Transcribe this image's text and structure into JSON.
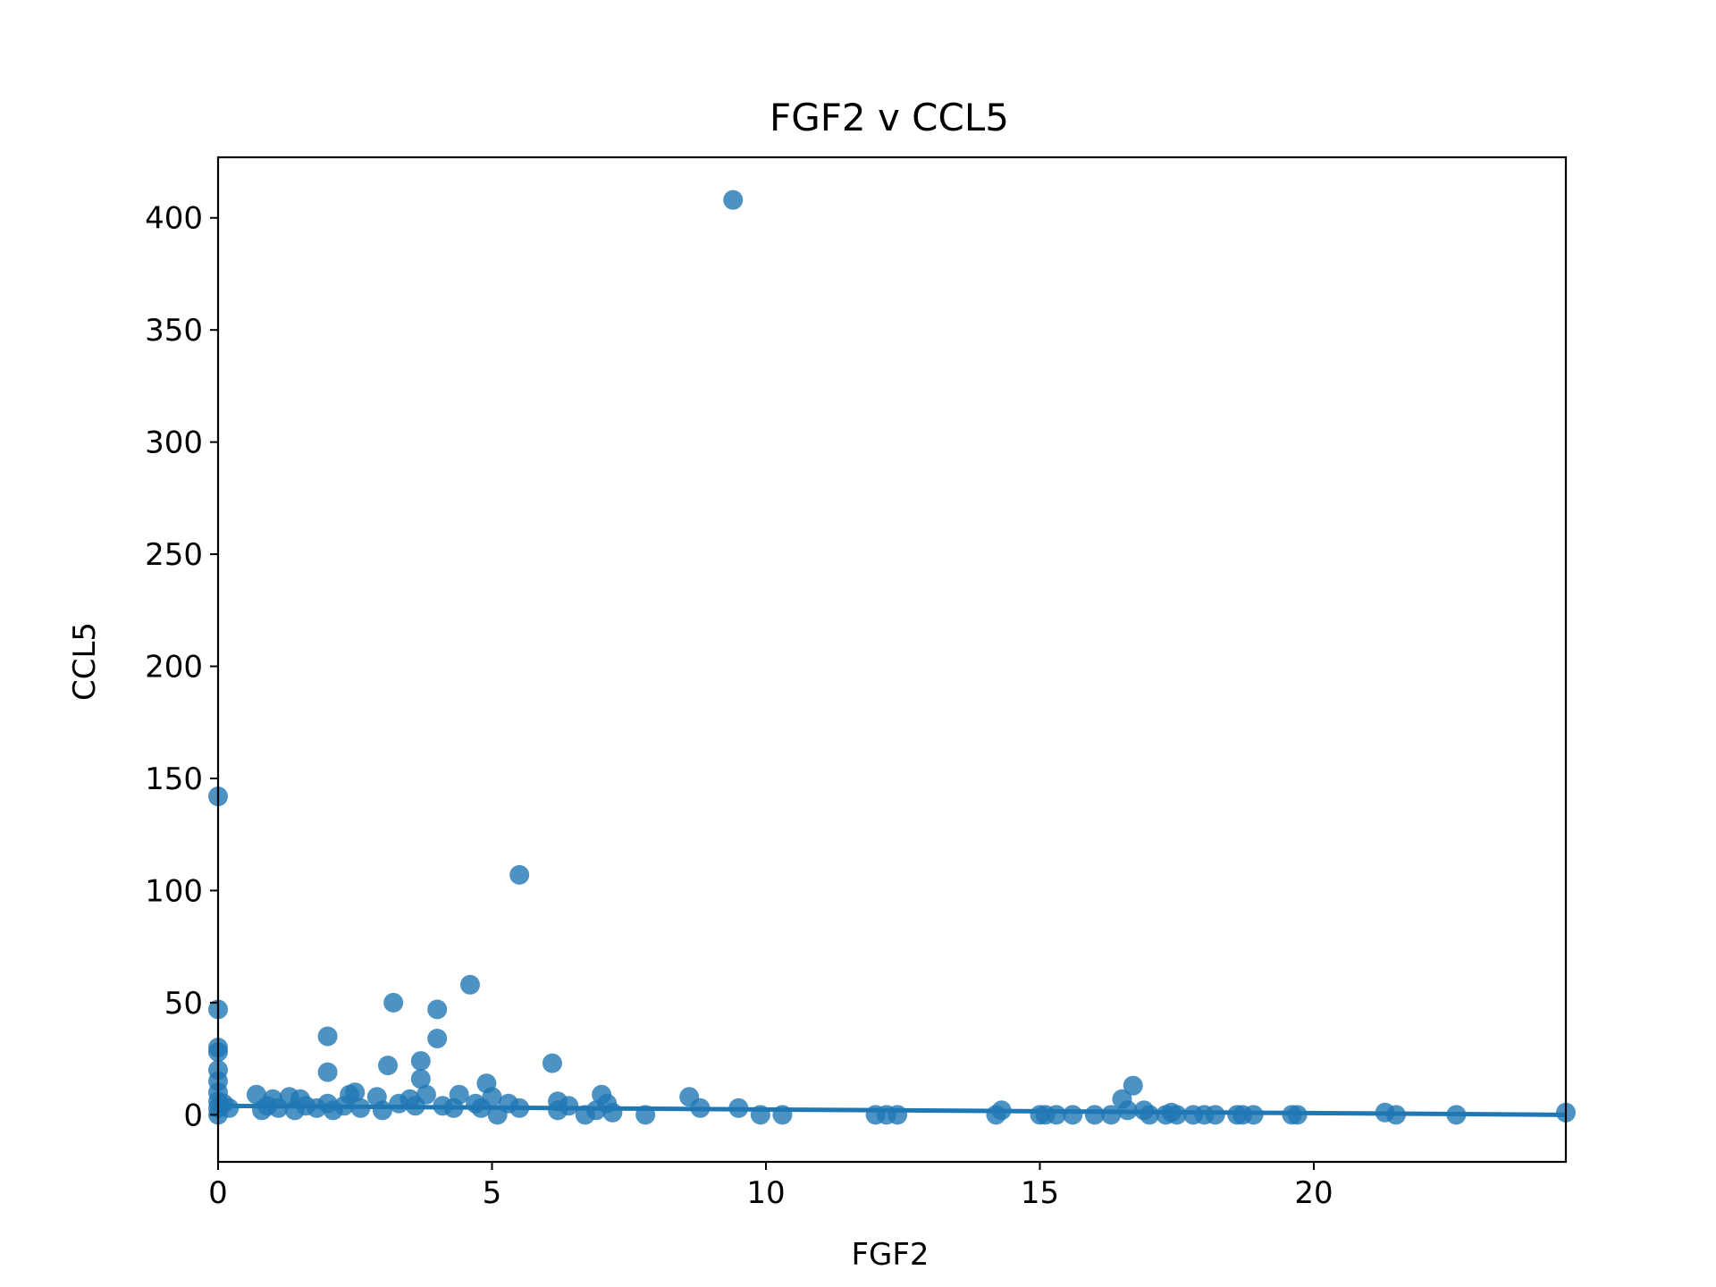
{
  "chart_data": {
    "type": "scatter",
    "title": "FGF2 v CCL5",
    "xlabel": "FGF2",
    "ylabel": "CCL5",
    "xlim": [
      0,
      24.6
    ],
    "ylim": [
      -21,
      427
    ],
    "xticks": [
      0,
      5,
      10,
      15,
      20
    ],
    "yticks": [
      0,
      50,
      100,
      150,
      200,
      250,
      300,
      350,
      400
    ],
    "grid": false,
    "legend": "none",
    "color": "#1f77b4",
    "points": [
      {
        "x": 0,
        "y": 142
      },
      {
        "x": 0,
        "y": 47
      },
      {
        "x": 0,
        "y": 30
      },
      {
        "x": 0,
        "y": 28
      },
      {
        "x": 0,
        "y": 20
      },
      {
        "x": 0,
        "y": 15
      },
      {
        "x": 0,
        "y": 10
      },
      {
        "x": 0,
        "y": 6
      },
      {
        "x": 0,
        "y": 3
      },
      {
        "x": 0,
        "y": 0
      },
      {
        "x": 0.1,
        "y": 5
      },
      {
        "x": 0.2,
        "y": 3
      },
      {
        "x": 0.7,
        "y": 9
      },
      {
        "x": 0.8,
        "y": 2
      },
      {
        "x": 0.9,
        "y": 4
      },
      {
        "x": 1.0,
        "y": 7
      },
      {
        "x": 1.1,
        "y": 3
      },
      {
        "x": 1.3,
        "y": 8
      },
      {
        "x": 1.4,
        "y": 2
      },
      {
        "x": 1.5,
        "y": 7
      },
      {
        "x": 1.6,
        "y": 4
      },
      {
        "x": 1.8,
        "y": 3
      },
      {
        "x": 2.0,
        "y": 19
      },
      {
        "x": 2.0,
        "y": 35
      },
      {
        "x": 2.0,
        "y": 5
      },
      {
        "x": 2.1,
        "y": 2
      },
      {
        "x": 2.3,
        "y": 4
      },
      {
        "x": 2.4,
        "y": 9
      },
      {
        "x": 2.5,
        "y": 10
      },
      {
        "x": 2.6,
        "y": 3
      },
      {
        "x": 2.9,
        "y": 8
      },
      {
        "x": 3.0,
        "y": 2
      },
      {
        "x": 3.1,
        "y": 22
      },
      {
        "x": 3.2,
        "y": 50
      },
      {
        "x": 3.3,
        "y": 5
      },
      {
        "x": 3.5,
        "y": 7
      },
      {
        "x": 3.6,
        "y": 4
      },
      {
        "x": 3.7,
        "y": 24
      },
      {
        "x": 3.7,
        "y": 16
      },
      {
        "x": 3.8,
        "y": 9
      },
      {
        "x": 4.0,
        "y": 47
      },
      {
        "x": 4.0,
        "y": 34
      },
      {
        "x": 4.1,
        "y": 4
      },
      {
        "x": 4.3,
        "y": 3
      },
      {
        "x": 4.4,
        "y": 9
      },
      {
        "x": 4.6,
        "y": 58
      },
      {
        "x": 4.7,
        "y": 5
      },
      {
        "x": 4.8,
        "y": 3
      },
      {
        "x": 4.9,
        "y": 14
      },
      {
        "x": 5.0,
        "y": 8
      },
      {
        "x": 5.1,
        "y": 0
      },
      {
        "x": 5.3,
        "y": 5
      },
      {
        "x": 5.5,
        "y": 107
      },
      {
        "x": 5.5,
        "y": 3
      },
      {
        "x": 6.1,
        "y": 23
      },
      {
        "x": 6.2,
        "y": 6
      },
      {
        "x": 6.2,
        "y": 2
      },
      {
        "x": 6.4,
        "y": 4
      },
      {
        "x": 6.7,
        "y": 0
      },
      {
        "x": 6.9,
        "y": 2
      },
      {
        "x": 7.0,
        "y": 9
      },
      {
        "x": 7.1,
        "y": 5
      },
      {
        "x": 7.2,
        "y": 1
      },
      {
        "x": 7.8,
        "y": 0
      },
      {
        "x": 8.6,
        "y": 8
      },
      {
        "x": 8.8,
        "y": 3
      },
      {
        "x": 9.4,
        "y": 408
      },
      {
        "x": 9.5,
        "y": 3
      },
      {
        "x": 9.9,
        "y": 0
      },
      {
        "x": 10.3,
        "y": 0
      },
      {
        "x": 12.0,
        "y": 0
      },
      {
        "x": 12.2,
        "y": 0
      },
      {
        "x": 12.4,
        "y": 0
      },
      {
        "x": 14.2,
        "y": 0
      },
      {
        "x": 14.3,
        "y": 2
      },
      {
        "x": 15.0,
        "y": 0
      },
      {
        "x": 15.1,
        "y": 0
      },
      {
        "x": 15.3,
        "y": 0
      },
      {
        "x": 15.6,
        "y": 0
      },
      {
        "x": 16.0,
        "y": 0
      },
      {
        "x": 16.3,
        "y": 0
      },
      {
        "x": 16.5,
        "y": 7
      },
      {
        "x": 16.6,
        "y": 2
      },
      {
        "x": 16.7,
        "y": 13
      },
      {
        "x": 16.9,
        "y": 2
      },
      {
        "x": 17.0,
        "y": 0
      },
      {
        "x": 17.3,
        "y": 0
      },
      {
        "x": 17.4,
        "y": 1
      },
      {
        "x": 17.5,
        "y": 0
      },
      {
        "x": 17.8,
        "y": 0
      },
      {
        "x": 18.0,
        "y": 0
      },
      {
        "x": 18.2,
        "y": 0
      },
      {
        "x": 18.6,
        "y": 0
      },
      {
        "x": 18.7,
        "y": 0
      },
      {
        "x": 18.9,
        "y": 0
      },
      {
        "x": 19.6,
        "y": 0
      },
      {
        "x": 19.7,
        "y": 0
      },
      {
        "x": 21.3,
        "y": 1
      },
      {
        "x": 21.5,
        "y": 0
      },
      {
        "x": 22.6,
        "y": 0
      },
      {
        "x": 24.6,
        "y": 1
      }
    ],
    "regression_line": {
      "x": [
        0,
        24.6
      ],
      "y": [
        4,
        0
      ]
    }
  }
}
